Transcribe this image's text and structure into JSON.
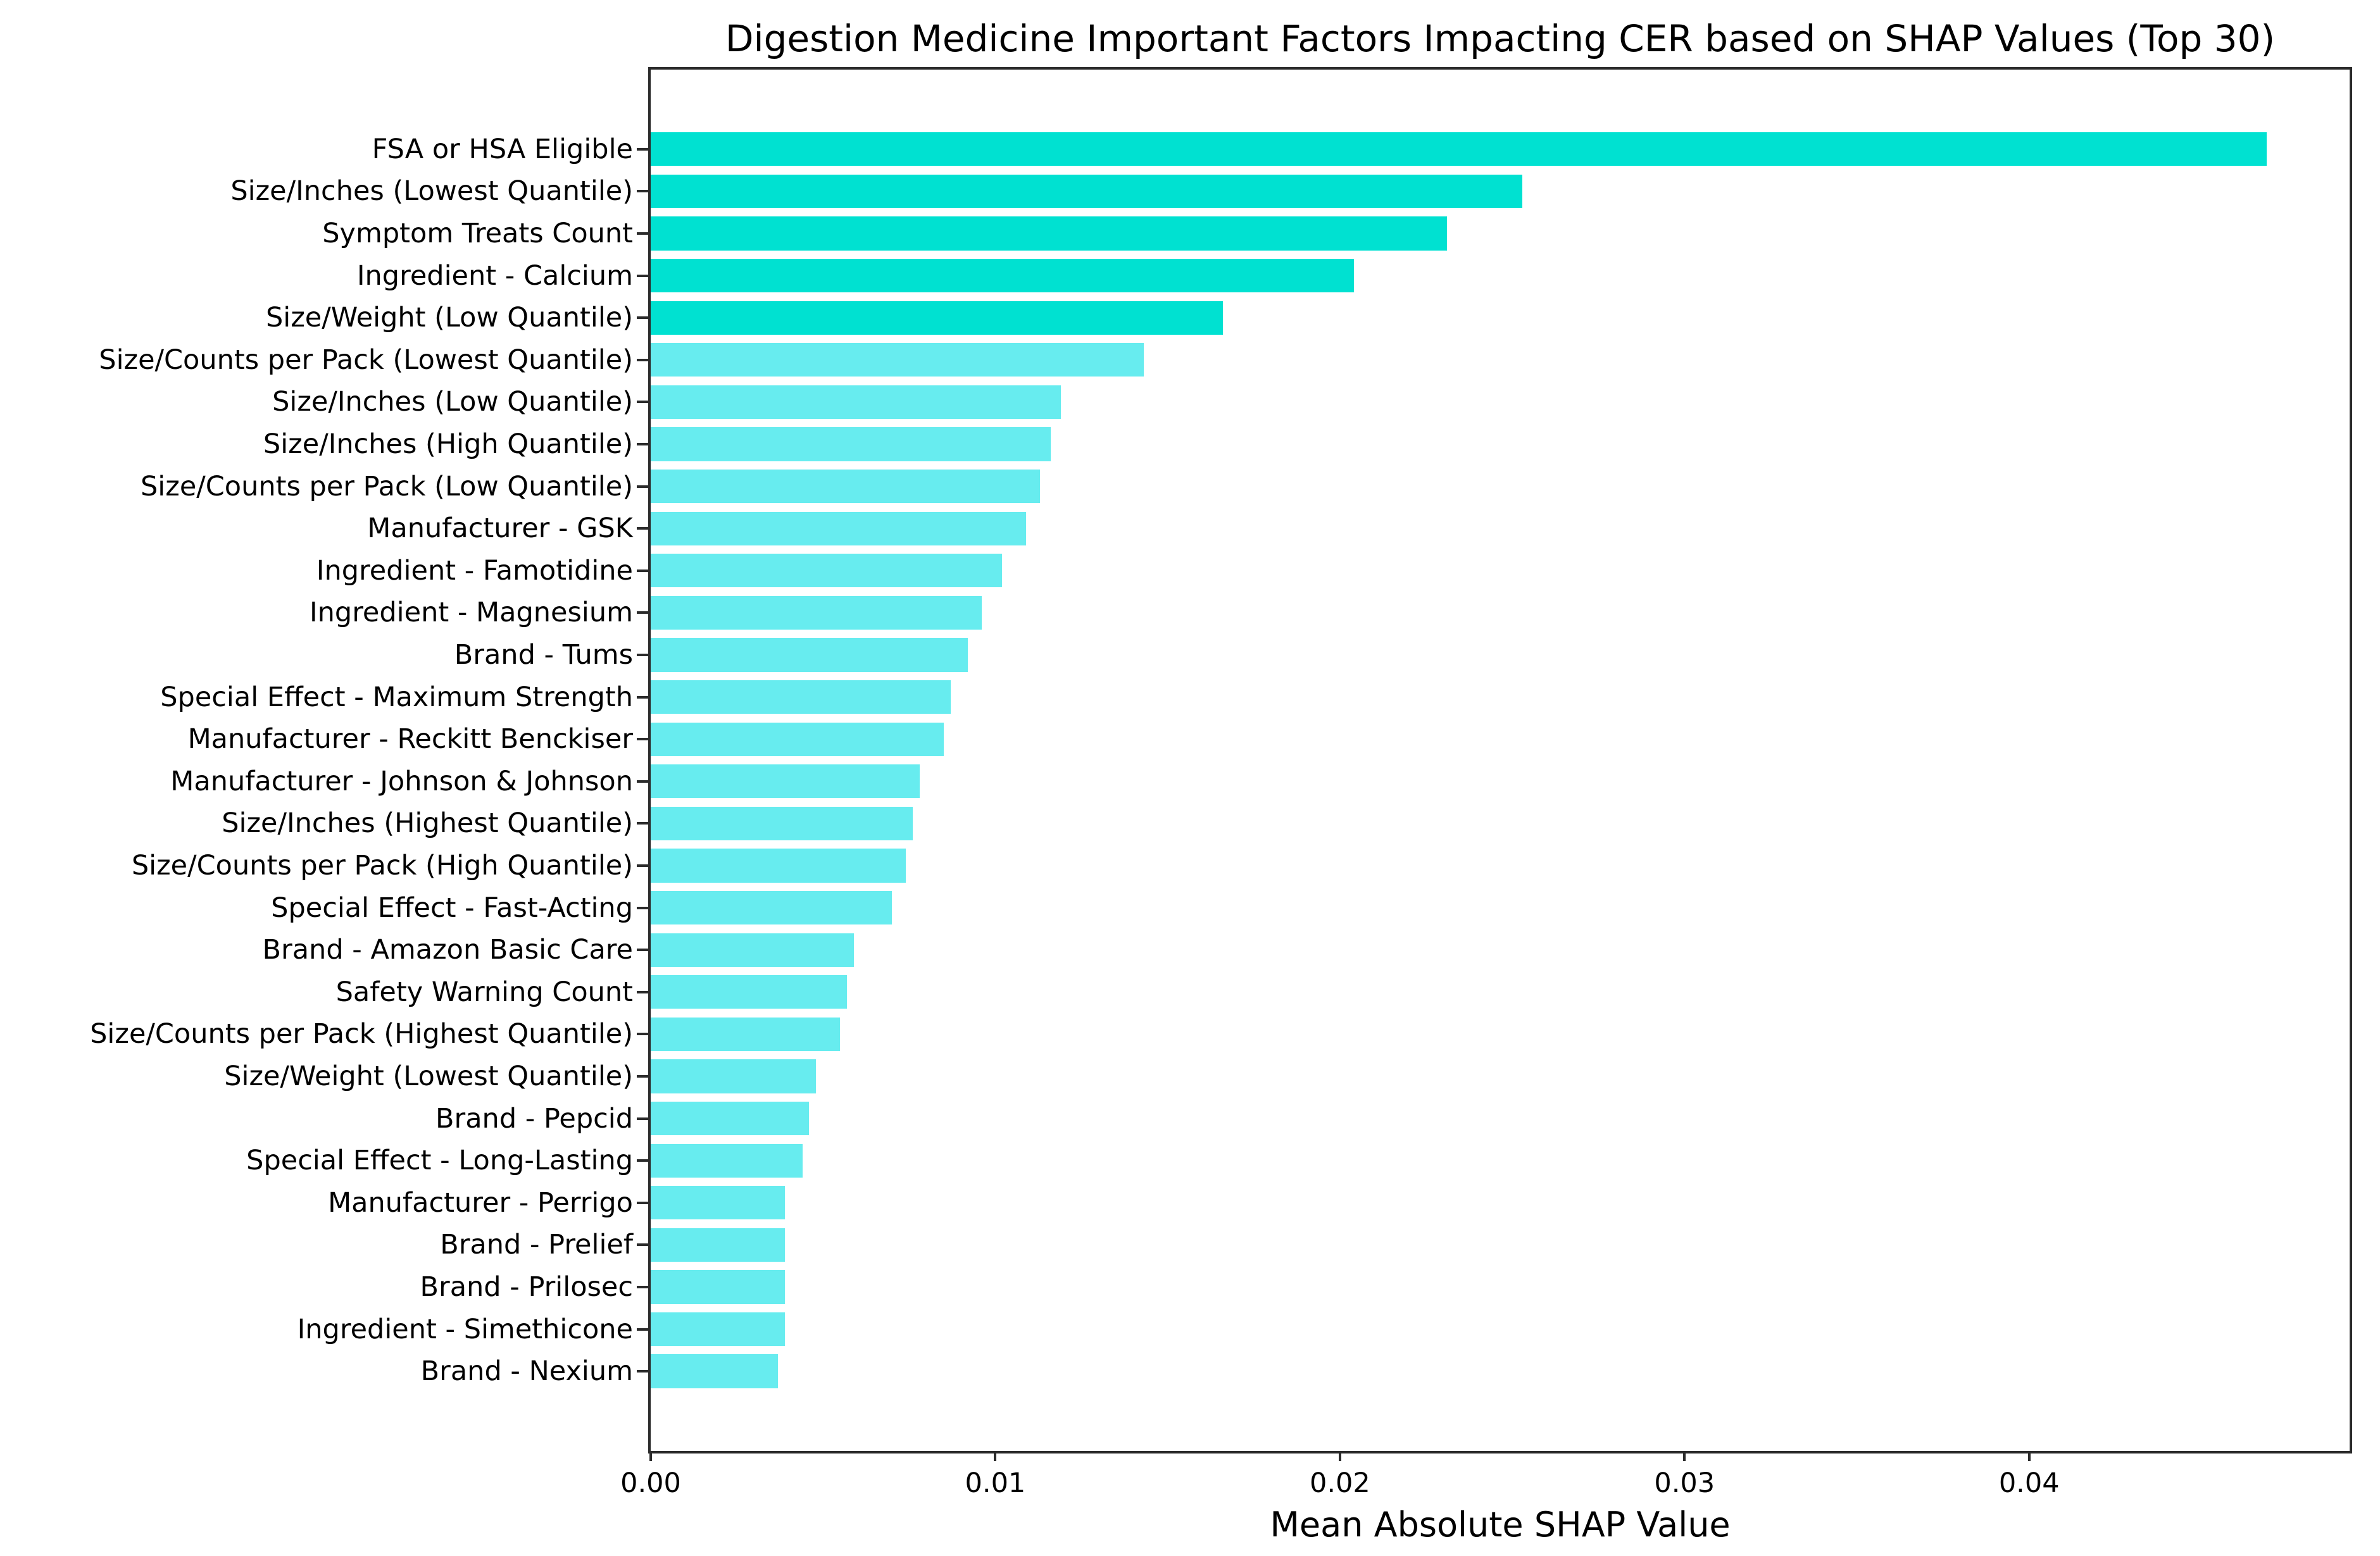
{
  "colors": {
    "background": "#ffffff",
    "spine": "#2b2b2b",
    "text": "#000000",
    "bar_highlight": "#00e1d1",
    "bar_regular": "#67ecef"
  },
  "chart_data": {
    "type": "bar",
    "orientation": "horizontal",
    "title": "Digestion Medicine Important Factors Impacting CER based on SHAP Values (Top 30)",
    "xlabel": "Mean Absolute SHAP Value",
    "ylabel": "",
    "categories": [
      "FSA or HSA Eligible",
      "Size/Inches (Lowest Quantile)",
      "Symptom Treats Count",
      "Ingredient - Calcium",
      "Size/Weight (Low Quantile)",
      "Size/Counts per Pack (Lowest Quantile)",
      "Size/Inches (Low Quantile)",
      "Size/Inches (High Quantile)",
      "Size/Counts per Pack (Low Quantile)",
      "Manufacturer - GSK",
      "Ingredient - Famotidine",
      "Ingredient - Magnesium",
      "Brand - Tums",
      "Special Effect - Maximum Strength",
      "Manufacturer - Reckitt Benckiser",
      "Manufacturer - Johnson & Johnson",
      "Size/Inches (Highest Quantile)",
      "Size/Counts per Pack (High Quantile)",
      "Special Effect - Fast-Acting",
      "Brand - Amazon Basic Care",
      "Safety Warning Count",
      "Size/Counts per Pack (Highest Quantile)",
      "Size/Weight (Lowest Quantile)",
      "Brand - Pepcid",
      "Special Effect - Long-Lasting",
      "Manufacturer - Perrigo",
      "Brand - Prelief",
      "Brand - Prilosec",
      "Ingredient - Simethicone",
      "Brand - Nexium"
    ],
    "values": [
      0.0469,
      0.0253,
      0.0231,
      0.0204,
      0.0166,
      0.0143,
      0.0119,
      0.0116,
      0.0113,
      0.0109,
      0.0102,
      0.0096,
      0.0092,
      0.0087,
      0.0085,
      0.0078,
      0.0076,
      0.0074,
      0.007,
      0.0059,
      0.0057,
      0.0055,
      0.0048,
      0.0046,
      0.0044,
      0.0039,
      0.0039,
      0.0039,
      0.0039,
      0.0037
    ],
    "highlight_count": 5,
    "xlim": [
      0,
      0.0493
    ],
    "x_ticks": [
      0.0,
      0.01,
      0.02,
      0.03,
      0.04
    ],
    "x_tick_labels": [
      "0.00",
      "0.01",
      "0.02",
      "0.03",
      "0.04"
    ],
    "grid": false,
    "legend_position": "none"
  }
}
